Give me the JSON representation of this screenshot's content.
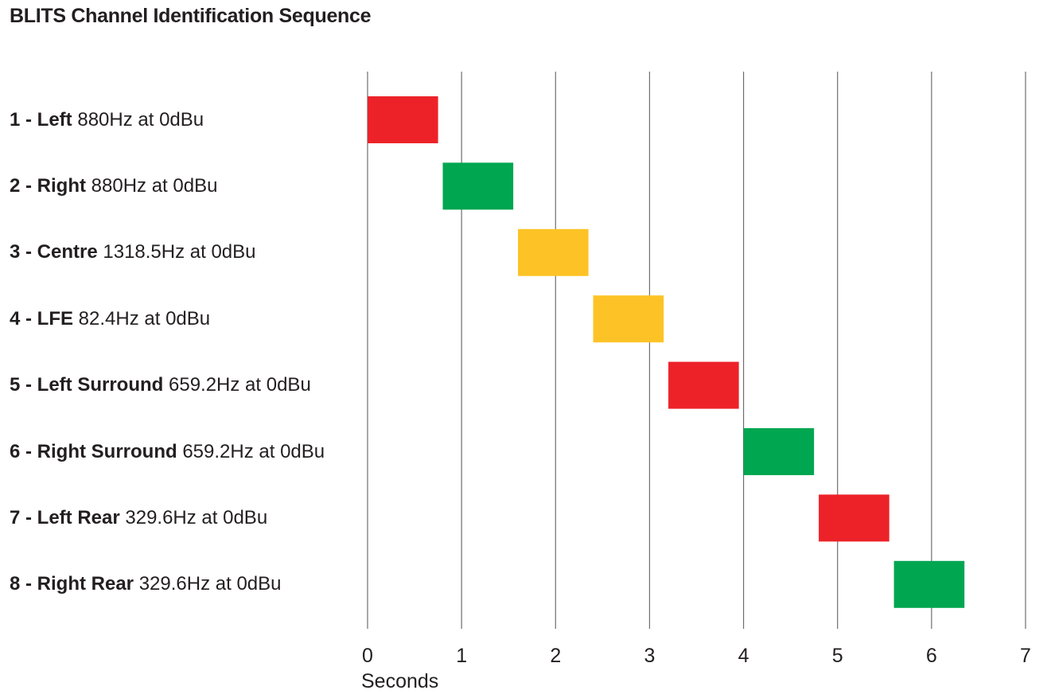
{
  "chart_data": {
    "type": "bar",
    "title": "BLITS Channel Identification Sequence",
    "xlabel": "Seconds",
    "xlim": [
      0,
      7
    ],
    "xticks": [
      "0",
      "1",
      "2",
      "3",
      "4",
      "5",
      "6",
      "7"
    ],
    "grid": "vertical",
    "rows": [
      {
        "id": "1",
        "name": "Left",
        "detail": "880Hz at 0dBu",
        "start": 0.0,
        "end": 0.75,
        "color": "#ed2229"
      },
      {
        "id": "2",
        "name": "Right",
        "detail": "880Hz at 0dBu",
        "start": 0.8,
        "end": 1.55,
        "color": "#00a650"
      },
      {
        "id": "3",
        "name": "Centre",
        "detail": "1318.5Hz at 0dBu",
        "start": 1.6,
        "end": 2.35,
        "color": "#fdc326"
      },
      {
        "id": "4",
        "name": "LFE",
        "detail": "82.4Hz at 0dBu",
        "start": 2.4,
        "end": 3.15,
        "color": "#fdc326"
      },
      {
        "id": "5",
        "name": "Left Surround",
        "detail": "659.2Hz at 0dBu",
        "start": 3.2,
        "end": 3.95,
        "color": "#ed2229"
      },
      {
        "id": "6",
        "name": "Right Surround",
        "detail": "659.2Hz at 0dBu",
        "start": 4.0,
        "end": 4.75,
        "color": "#00a650"
      },
      {
        "id": "7",
        "name": "Left Rear",
        "detail": "329.6Hz at 0dBu",
        "start": 4.8,
        "end": 5.55,
        "color": "#ed2229"
      },
      {
        "id": "8",
        "name": "Right Rear",
        "detail": "329.6Hz at 0dBu",
        "start": 5.6,
        "end": 6.35,
        "color": "#00a650"
      }
    ]
  }
}
